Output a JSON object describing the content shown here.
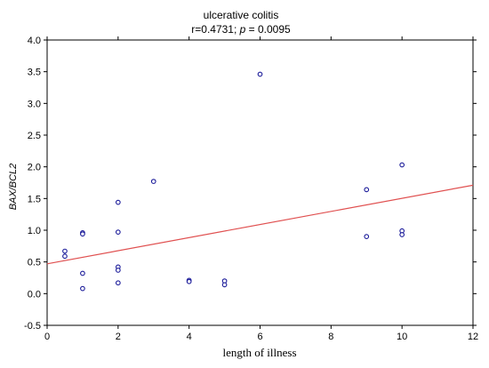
{
  "chart_data": {
    "type": "scatter",
    "title": "ulcerative colitis",
    "subtitle_prefix": "r=0.4731; ",
    "subtitle_p_symbol": "p",
    "subtitle_suffix": " = 0.0095",
    "xlabel": "length of illness",
    "ylabel": "BAX/BCL2",
    "xlim": [
      0,
      12
    ],
    "ylim": [
      -0.5,
      4.0
    ],
    "x_ticks": [
      0,
      2,
      4,
      6,
      8,
      10,
      12
    ],
    "x_tick_labels": [
      "0",
      "2",
      "4",
      "6",
      "8",
      "10",
      "12"
    ],
    "y_ticks": [
      -0.5,
      0.0,
      0.5,
      1.0,
      1.5,
      2.0,
      2.5,
      3.0,
      3.5,
      4.0
    ],
    "y_tick_labels": [
      "-0.5",
      "0.0",
      "0.5",
      "1.0",
      "1.5",
      "2.0",
      "2.5",
      "3.0",
      "3.5",
      "4.0"
    ],
    "grid": false,
    "colors": {
      "points": "#1a1a99",
      "fit_line": "#e05050",
      "axes": "#000000"
    },
    "fit_line": {
      "x": [
        0,
        12
      ],
      "y": [
        0.47,
        1.71
      ]
    },
    "points": [
      {
        "x": 0.5,
        "y": 0.67
      },
      {
        "x": 0.5,
        "y": 0.59
      },
      {
        "x": 1.0,
        "y": 0.96
      },
      {
        "x": 1.0,
        "y": 0.94
      },
      {
        "x": 1.0,
        "y": 0.32
      },
      {
        "x": 1.0,
        "y": 0.08
      },
      {
        "x": 2.0,
        "y": 1.44
      },
      {
        "x": 2.0,
        "y": 0.97
      },
      {
        "x": 2.0,
        "y": 0.42
      },
      {
        "x": 2.0,
        "y": 0.37
      },
      {
        "x": 2.0,
        "y": 0.17
      },
      {
        "x": 3.0,
        "y": 1.77
      },
      {
        "x": 4.0,
        "y": 0.21
      },
      {
        "x": 4.0,
        "y": 0.19
      },
      {
        "x": 5.0,
        "y": 0.2
      },
      {
        "x": 5.0,
        "y": 0.14
      },
      {
        "x": 6.0,
        "y": 3.46
      },
      {
        "x": 9.0,
        "y": 1.64
      },
      {
        "x": 9.0,
        "y": 0.9
      },
      {
        "x": 10.0,
        "y": 2.03
      },
      {
        "x": 10.0,
        "y": 0.99
      },
      {
        "x": 10.0,
        "y": 0.93
      }
    ]
  }
}
